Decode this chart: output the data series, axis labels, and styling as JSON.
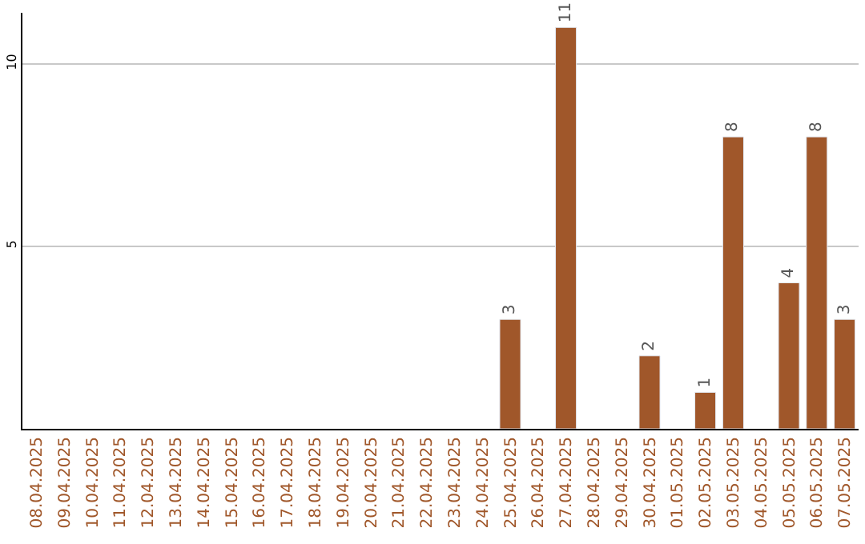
{
  "chart_data": {
    "type": "bar",
    "categories": [
      "08.04.2025",
      "09.04.2025",
      "10.04.2025",
      "11.04.2025",
      "12.04.2025",
      "13.04.2025",
      "14.04.2025",
      "15.04.2025",
      "16.04.2025",
      "17.04.2025",
      "18.04.2025",
      "19.04.2025",
      "20.04.2025",
      "21.04.2025",
      "22.04.2025",
      "23.04.2025",
      "24.04.2025",
      "25.04.2025",
      "26.04.2025",
      "27.04.2025",
      "28.04.2025",
      "29.04.2025",
      "30.04.2025",
      "01.05.2025",
      "02.05.2025",
      "03.05.2025",
      "04.05.2025",
      "05.05.2025",
      "06.05.2025",
      "07.05.2025"
    ],
    "values": [
      null,
      null,
      null,
      null,
      null,
      null,
      null,
      null,
      null,
      null,
      null,
      null,
      null,
      null,
      null,
      null,
      null,
      3,
      null,
      11,
      null,
      null,
      2,
      null,
      1,
      8,
      null,
      4,
      8,
      3
    ],
    "value_labels": [
      null,
      null,
      null,
      null,
      null,
      null,
      null,
      null,
      null,
      null,
      null,
      null,
      null,
      null,
      null,
      null,
      null,
      "3",
      null,
      "11",
      null,
      null,
      "2",
      null,
      "1",
      "8",
      null,
      "4",
      "8",
      "3"
    ],
    "color": "#a0572a",
    "ylim": [
      0,
      11.4
    ],
    "yticks": [
      5,
      10
    ],
    "grid": "y",
    "legend": false
  }
}
